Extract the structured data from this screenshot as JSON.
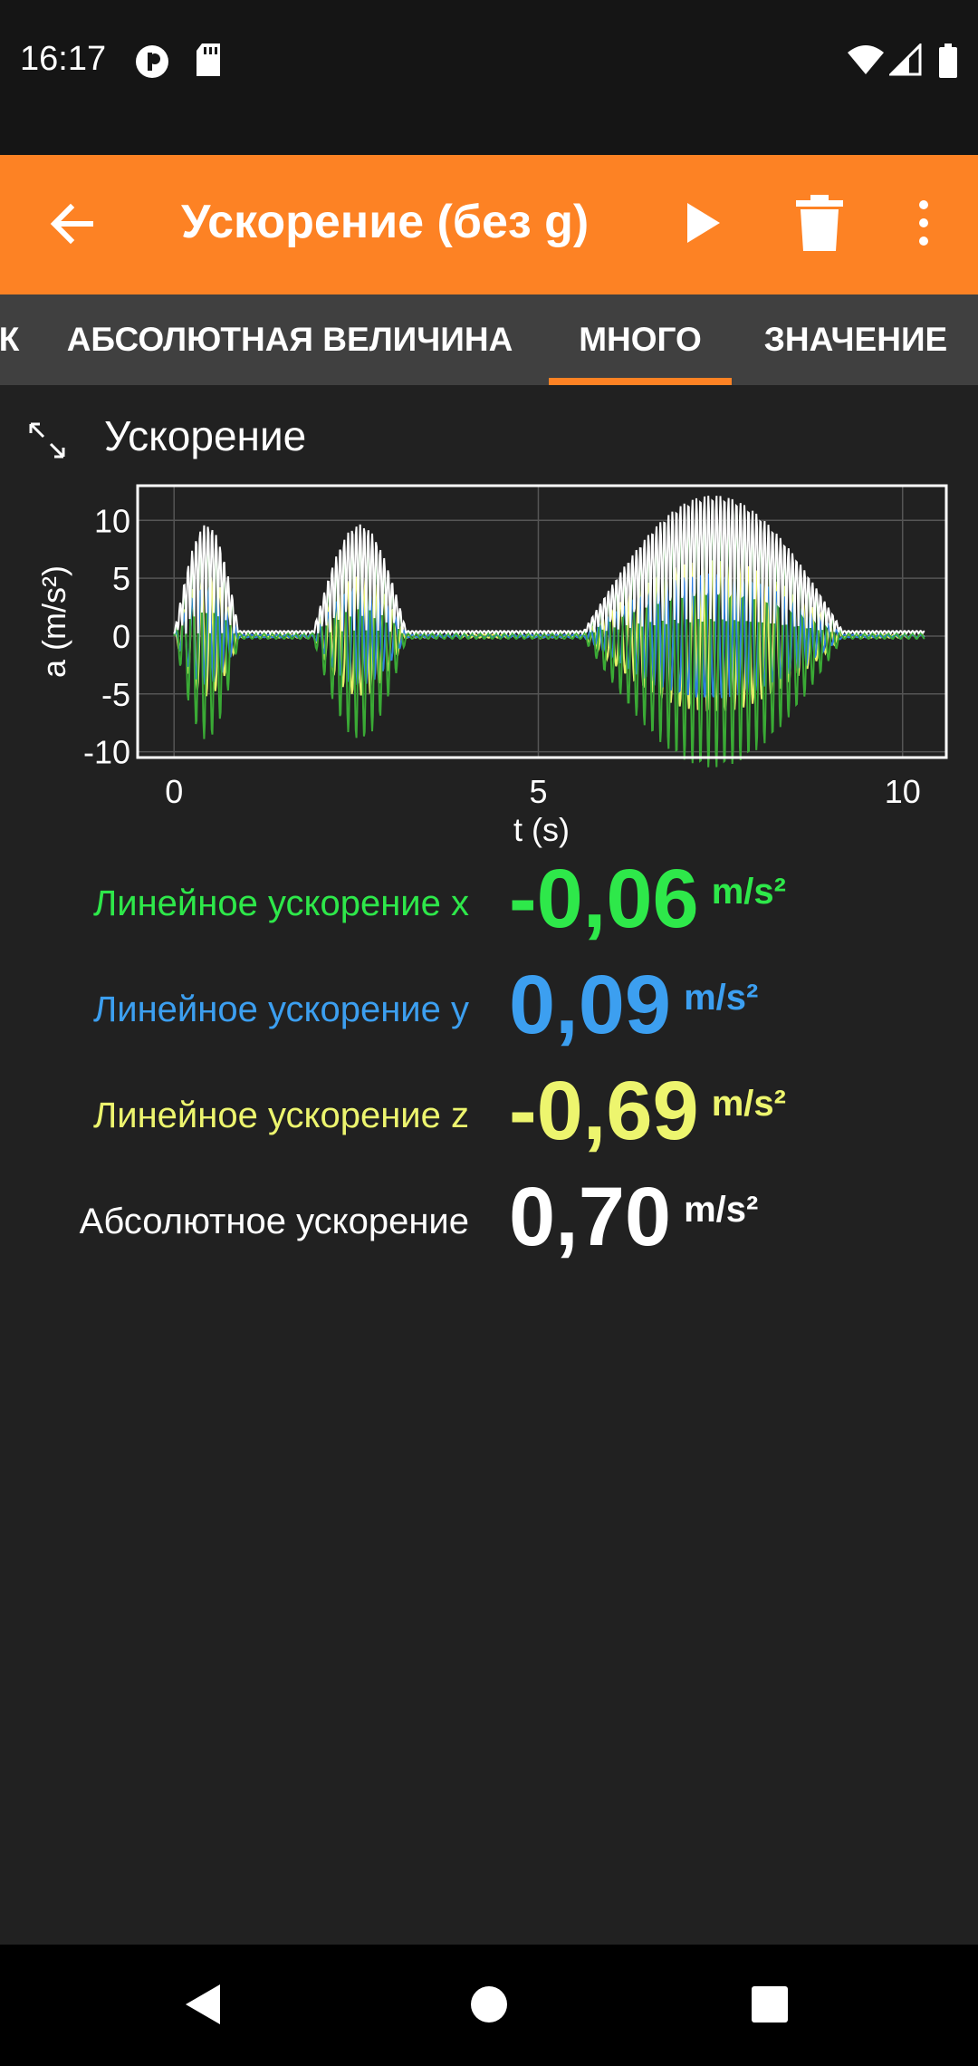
{
  "status_bar": {
    "time": "16:17",
    "left_icons": [
      "app-notification-icon",
      "sd-card-icon"
    ],
    "right_icons": [
      "wifi-icon",
      "signal-icon",
      "battery-icon"
    ]
  },
  "app_bar": {
    "title": "Ускорение (без g)",
    "background": "#fd8224",
    "icons": [
      "arrow-back-icon",
      "play-icon",
      "delete-icon",
      "more-vert-icon"
    ]
  },
  "tabs": {
    "items": [
      {
        "label": "К"
      },
      {
        "label": "АБСОЛЮТНАЯ ВЕЛИЧИНА"
      },
      {
        "label": "МНОГО"
      },
      {
        "label": "ЗНАЧЕНИЕ"
      }
    ],
    "selected": "МНОГО"
  },
  "section": {
    "title": "Ускорение"
  },
  "chart_data": {
    "type": "line",
    "title": "",
    "xlabel": "t (s)",
    "ylabel": "a (m/s²)",
    "xlim": [
      -0.5,
      10.6
    ],
    "ylim": [
      -10.5,
      13
    ],
    "xticks": [
      "0",
      "5",
      "10"
    ],
    "yticks": [
      "10",
      "5",
      "0",
      "-5",
      "-10"
    ],
    "grid": true,
    "series": [
      {
        "color": "#ffffff",
        "description_of_shape": "magnitude"
      },
      {
        "color": "#3aaa35",
        "description_of_shape": "x"
      },
      {
        "color": "#2f7fe0",
        "description_of_shape": "y"
      },
      {
        "color": "#e8f06a",
        "description_of_shape": "z"
      }
    ],
    "bursts": [
      {
        "t_start": 0.0,
        "t_end": 0.9,
        "amplitude": 9
      },
      {
        "t_start": 1.9,
        "t_end": 3.2,
        "amplitude": 9
      },
      {
        "t_start": 5.6,
        "t_end": 9.2,
        "amplitude": 12
      }
    ]
  },
  "readouts": [
    {
      "label": "Линейное ускорение x",
      "value": "-0,06",
      "unit": "m/s²",
      "color": "#2ee84a"
    },
    {
      "label": "Линейное ускорение y",
      "value": "0,09",
      "unit": "m/s²",
      "color": "#3c9ff0"
    },
    {
      "label": "Линейное ускорение z",
      "value": "-0,69",
      "unit": "m/s²",
      "color": "#edf56e"
    },
    {
      "label": "Абсолютное ускорение",
      "value": "0,70",
      "unit": "m/s²",
      "color": "#ffffff"
    }
  ],
  "nav_bar": {
    "icons": [
      "nav-back-icon",
      "nav-home-icon",
      "nav-recents-icon"
    ]
  }
}
